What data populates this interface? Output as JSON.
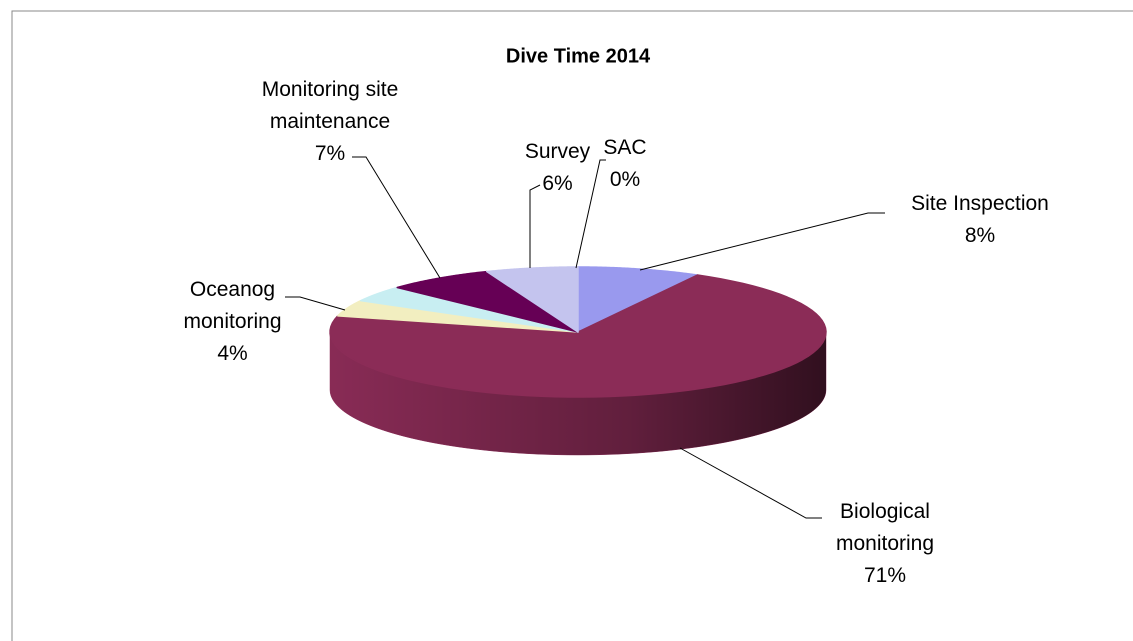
{
  "chart_data": {
    "type": "pie",
    "title": "Dive Time 2014",
    "categories": [
      "SAC",
      "Site Inspection",
      "Biological monitoring",
      "Oceanog monitoring",
      null,
      "Monitoring site maintenance",
      "Survey"
    ],
    "values": [
      0,
      8,
      71,
      4,
      4,
      7,
      6
    ],
    "value_labels": [
      "0%",
      "8%",
      "71%",
      "4%",
      null,
      "7%",
      "6%"
    ],
    "colors": [
      "#cc0077",
      "#9999ee",
      "#8b2c57",
      "#f2eec0",
      "#c8eef2",
      "#660055",
      "#c4c4ee"
    ]
  }
}
